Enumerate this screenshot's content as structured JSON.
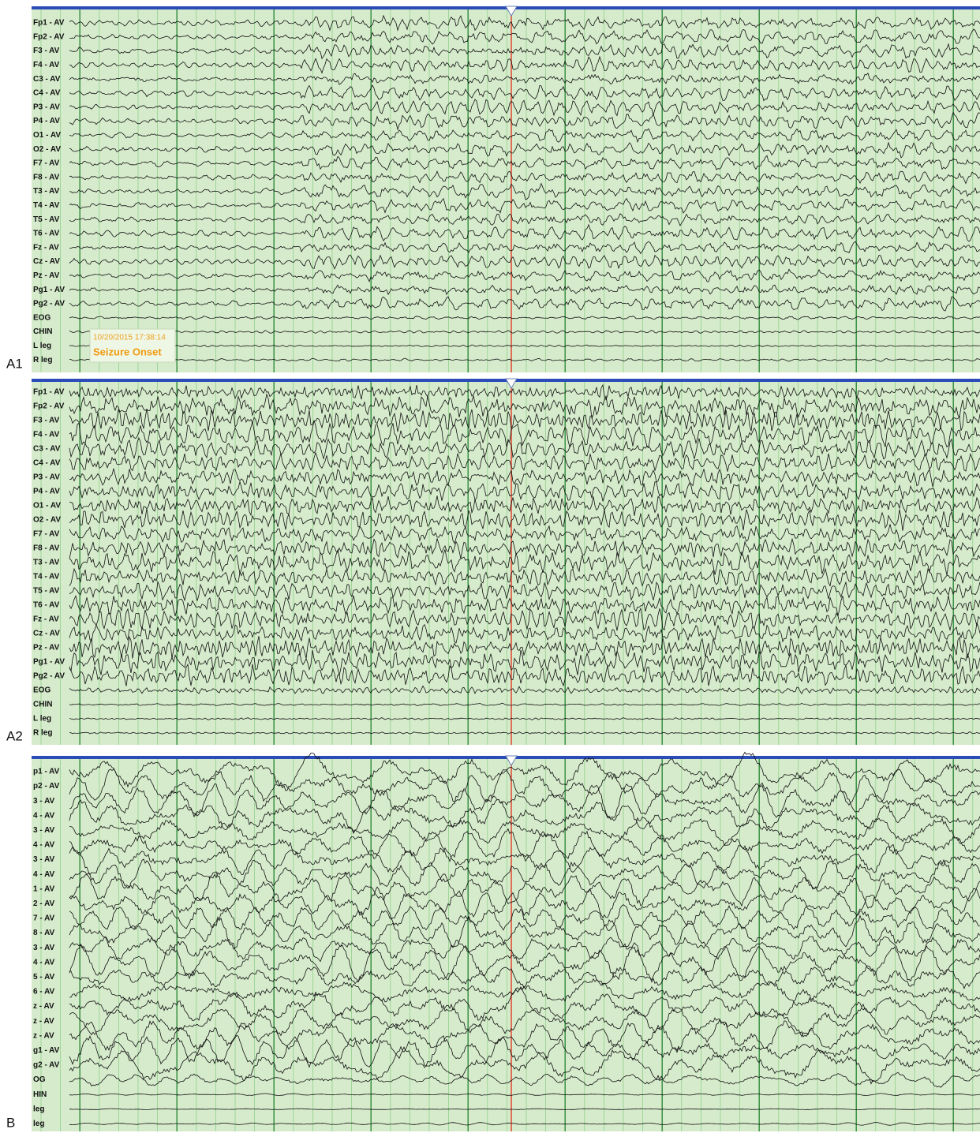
{
  "panels": [
    {
      "label": "A1",
      "channels": [
        "Fp1 - AV",
        "Fp2 - AV",
        "F3 - AV",
        "F4 - AV",
        "C3 - AV",
        "C4 - AV",
        "P3 - AV",
        "P4 - AV",
        "O1 - AV",
        "O2 - AV",
        "F7 - AV",
        "F8 - AV",
        "T3 - AV",
        "T4 - AV",
        "T5 - AV",
        "T6 - AV",
        "Fz - AV",
        "Cz - AV",
        "Pz - AV",
        "Pg1 - AV",
        "Pg2 - AV",
        "EOG",
        "CHIN",
        "L leg",
        "R leg"
      ],
      "annotation": {
        "timestamp": "10/20/2015 17:38:14",
        "text": "Seizure Onset"
      }
    },
    {
      "label": "A2",
      "channels": [
        "Fp1 - AV",
        "Fp2 - AV",
        "F3 - AV",
        "F4 - AV",
        "C3 - AV",
        "C4 - AV",
        "P3 - AV",
        "P4 - AV",
        "O1 - AV",
        "O2 - AV",
        "F7 - AV",
        "F8 - AV",
        "T3 - AV",
        "T4 - AV",
        "T5 - AV",
        "T6 - AV",
        "Fz - AV",
        "Cz - AV",
        "Pz - AV",
        "Pg1 - AV",
        "Pg2 - AV",
        "EOG",
        "CHIN",
        "L leg",
        "R leg"
      ]
    },
    {
      "label": "B",
      "channels": [
        "p1 - AV",
        "p2 - AV",
        "3 - AV",
        "4 - AV",
        "3 - AV",
        "4 - AV",
        "3 - AV",
        "4 - AV",
        "1 - AV",
        "2 - AV",
        "7 - AV",
        "8 - AV",
        "3 - AV",
        "4 - AV",
        "5 - AV",
        "6 - AV",
        "z - AV",
        "z - AV",
        "z - AV",
        "g1 - AV",
        "g2 - AV",
        "OG",
        "HIN",
        "leg",
        "leg"
      ]
    }
  ]
}
